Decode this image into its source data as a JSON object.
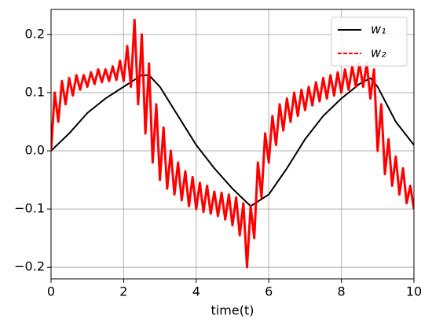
{
  "chart_data": {
    "type": "line",
    "xlabel": "time(t)",
    "xlim": [
      0,
      10
    ],
    "xticks": [
      0,
      2,
      4,
      6,
      8,
      10
    ],
    "ylim": [
      -0.22,
      0.243
    ],
    "yticks": [
      {
        "value": -0.2,
        "label": "−0.2"
      },
      {
        "value": -0.1,
        "label": "−0.1"
      },
      {
        "value": 0,
        "label": "0.0"
      },
      {
        "value": 0.1,
        "label": "0.1"
      },
      {
        "value": 0.2,
        "label": "0.2"
      }
    ],
    "grid": true,
    "legend": "upper right",
    "series": [
      {
        "name": "w₁",
        "color": "#000000",
        "dash": "solid",
        "x": [
          0,
          0.5,
          1,
          1.5,
          2,
          2.5,
          2.7,
          3,
          3.5,
          4,
          4.5,
          5,
          5.5,
          6,
          6.5,
          7,
          7.5,
          8,
          8.5,
          8.8,
          9,
          9.5,
          10
        ],
        "values": [
          0,
          0.03,
          0.065,
          0.09,
          0.11,
          0.13,
          0.13,
          0.11,
          0.06,
          0.01,
          -0.03,
          -0.065,
          -0.095,
          -0.075,
          -0.03,
          0.02,
          0.06,
          0.09,
          0.115,
          0.125,
          0.11,
          0.05,
          0.01
        ]
      },
      {
        "name": "w₂",
        "color": "#ff0000",
        "dash": "dashed",
        "x": [
          0,
          0.1,
          0.2,
          0.3,
          0.4,
          0.5,
          0.6,
          0.7,
          0.8,
          0.9,
          1,
          1.1,
          1.2,
          1.3,
          1.4,
          1.5,
          1.6,
          1.7,
          1.8,
          1.9,
          2,
          2.1,
          2.2,
          2.3,
          2.4,
          2.5,
          2.6,
          2.7,
          2.8,
          2.9,
          3,
          3.1,
          3.2,
          3.3,
          3.4,
          3.5,
          3.6,
          3.7,
          3.8,
          3.9,
          4,
          4.1,
          4.2,
          4.3,
          4.4,
          4.5,
          4.6,
          4.7,
          4.8,
          4.9,
          5,
          5.1,
          5.2,
          5.3,
          5.4,
          5.5,
          5.6,
          5.7,
          5.8,
          5.9,
          6,
          6.1,
          6.2,
          6.3,
          6.4,
          6.5,
          6.6,
          6.7,
          6.8,
          6.9,
          7,
          7.1,
          7.2,
          7.3,
          7.4,
          7.5,
          7.6,
          7.7,
          7.8,
          7.9,
          8,
          8.1,
          8.2,
          8.3,
          8.4,
          8.5,
          8.6,
          8.7,
          8.8,
          8.9,
          9,
          9.1,
          9.2,
          9.3,
          9.4,
          9.5,
          9.6,
          9.7,
          9.8,
          9.9,
          10
        ],
        "values": [
          0,
          0.1,
          0.05,
          0.12,
          0.08,
          0.125,
          0.095,
          0.13,
          0.105,
          0.13,
          0.11,
          0.135,
          0.115,
          0.14,
          0.118,
          0.14,
          0.12,
          0.145,
          0.122,
          0.155,
          0.12,
          0.18,
          0.11,
          0.225,
          0.08,
          0.2,
          0.03,
          0.15,
          -0.02,
          0.08,
          -0.05,
          0.04,
          -0.065,
          0,
          -0.075,
          -0.02,
          -0.085,
          -0.035,
          -0.095,
          -0.045,
          -0.1,
          -0.055,
          -0.105,
          -0.06,
          -0.108,
          -0.07,
          -0.112,
          -0.072,
          -0.118,
          -0.075,
          -0.128,
          -0.08,
          -0.145,
          -0.09,
          -0.2,
          -0.095,
          -0.15,
          -0.02,
          -0.08,
          0.03,
          -0.02,
          0.06,
          0.01,
          0.08,
          0.035,
          0.09,
          0.05,
          0.1,
          0.06,
          0.105,
          0.07,
          0.11,
          0.078,
          0.118,
          0.085,
          0.125,
          0.09,
          0.13,
          0.095,
          0.135,
          0.1,
          0.14,
          0.105,
          0.145,
          0.11,
          0.15,
          0.11,
          0.15,
          0.09,
          0.14,
          0,
          0.08,
          -0.04,
          0.02,
          -0.06,
          -0.01,
          -0.075,
          -0.03,
          -0.09,
          -0.06,
          -0.1
        ]
      }
    ]
  }
}
